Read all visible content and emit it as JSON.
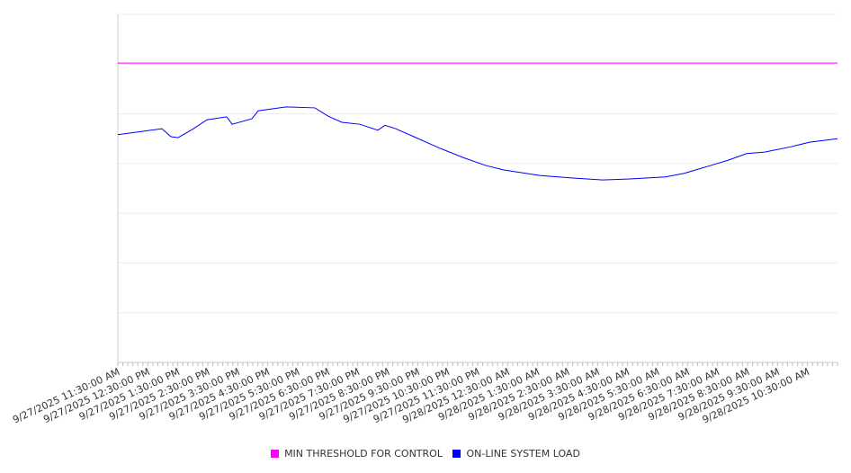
{
  "chart_data": {
    "type": "line",
    "title": "",
    "xlabel": "",
    "ylabel": "",
    "x_unit": "hours since 9/27/2025 11:30:00 AM",
    "xlim": [
      0,
      24
    ],
    "ylim": [
      0,
      7
    ],
    "y_tick_labels_shown": false,
    "grid": true,
    "legend_placement": "bottom-center",
    "tick_labels": [
      "9/27/2025 11:30:00 AM",
      "9/27/2025 12:30:00 PM",
      "9/27/2025 1:30:00 PM",
      "9/27/2025 2:30:00 PM",
      "9/27/2025 3:30:00 PM",
      "9/27/2025 4:30:00 PM",
      "9/27/2025 5:30:00 PM",
      "9/27/2025 6:30:00 PM",
      "9/27/2025 7:30:00 PM",
      "9/27/2025 8:30:00 PM",
      "9/27/2025 9:30:00 PM",
      "9/27/2025 10:30:00 PM",
      "9/27/2025 11:30:00 PM",
      "9/28/2025 12:30:00 AM",
      "9/28/2025 1:30:00 AM",
      "9/28/2025 2:30:00 AM",
      "9/28/2025 3:30:00 AM",
      "9/28/2025 4:30:00 AM",
      "9/28/2025 5:30:00 AM",
      "9/28/2025 6:30:00 AM",
      "9/28/2025 7:30:00 AM",
      "9/28/2025 8:30:00 AM",
      "9/28/2025 9:30:00 AM",
      "9/28/2025 10:30:00 AM"
    ],
    "series": [
      {
        "name": "MIN THRESHOLD FOR CONTROL",
        "color": "#ff00ff",
        "x": [
          0,
          24
        ],
        "values": [
          6.02,
          6.02
        ]
      },
      {
        "name": "ON-LINE SYSTEM LOAD",
        "color": "#0000ff",
        "x": [
          0,
          1.47,
          1.77,
          2.01,
          2.52,
          2.97,
          3.63,
          3.81,
          4.47,
          4.68,
          5.61,
          6.57,
          7.02,
          7.47,
          8.07,
          8.67,
          8.91,
          9.27,
          9.87,
          10.77,
          11.52,
          12.27,
          12.87,
          14.07,
          15.12,
          16.17,
          17.07,
          18.27,
          18.87,
          19.77,
          20.37,
          20.97,
          21.57,
          22.47,
          23.07,
          24.0
        ],
        "values": [
          4.58,
          4.7,
          4.54,
          4.52,
          4.7,
          4.88,
          4.94,
          4.79,
          4.9,
          5.06,
          5.14,
          5.12,
          4.95,
          4.83,
          4.79,
          4.67,
          4.77,
          4.7,
          4.54,
          4.3,
          4.12,
          3.96,
          3.87,
          3.76,
          3.71,
          3.67,
          3.69,
          3.73,
          3.8,
          3.96,
          4.07,
          4.2,
          4.23,
          4.34,
          4.43,
          4.5
        ]
      }
    ]
  }
}
